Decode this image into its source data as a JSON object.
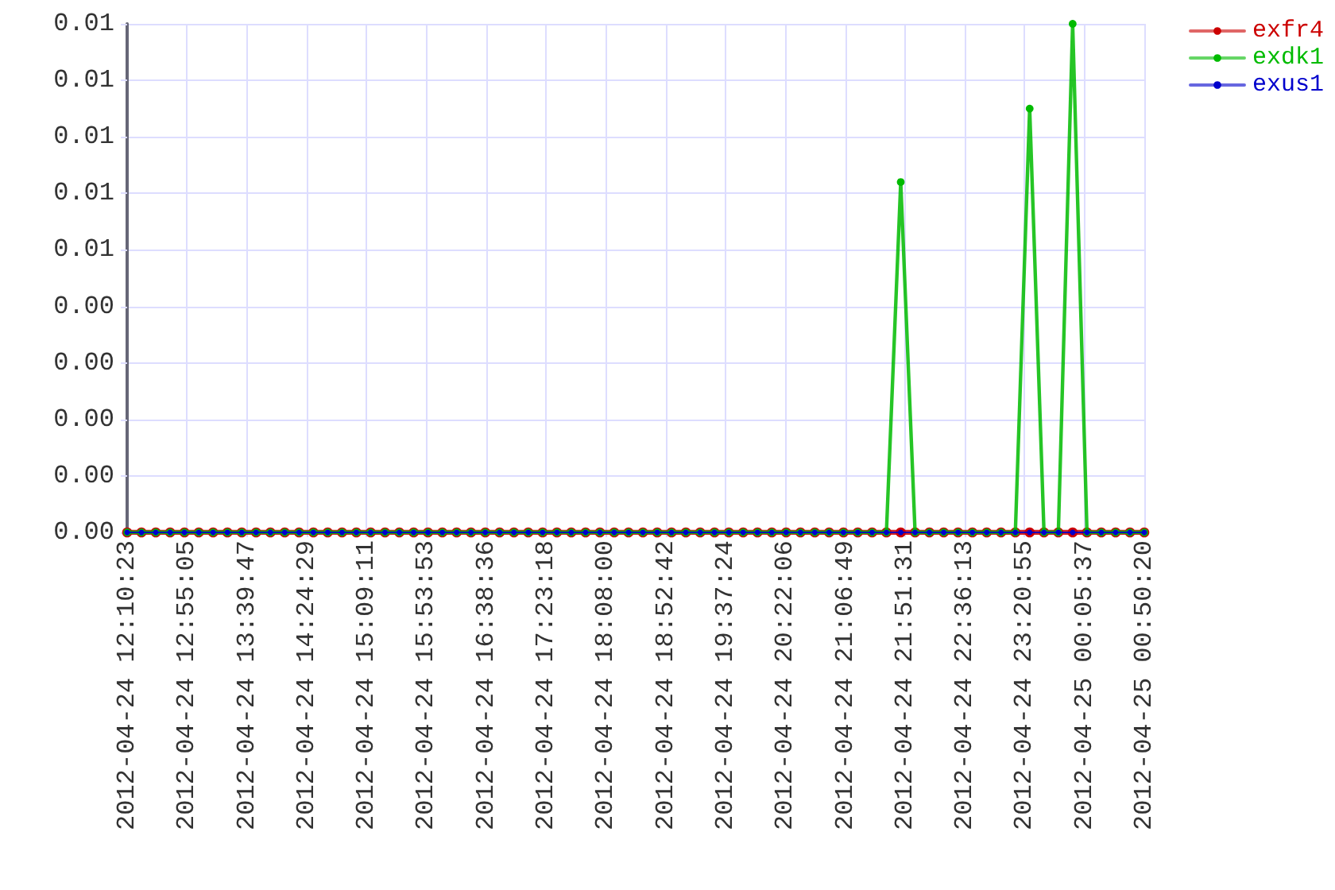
{
  "chart_data": {
    "type": "line",
    "x": [
      "2012-04-24T12:10:23",
      "2012-04-24T12:21:05",
      "2012-04-24T12:31:47",
      "2012-04-24T12:42:30",
      "2012-04-24T12:53:12",
      "2012-04-24T13:03:54",
      "2012-04-24T13:14:36",
      "2012-04-24T13:25:18",
      "2012-04-24T13:36:01",
      "2012-04-24T13:46:43",
      "2012-04-24T13:57:25",
      "2012-04-24T14:08:07",
      "2012-04-24T14:18:50",
      "2012-04-24T14:29:32",
      "2012-04-24T14:40:14",
      "2012-04-24T14:50:56",
      "2012-04-24T15:01:38",
      "2012-04-24T15:12:21",
      "2012-04-24T15:23:03",
      "2012-04-24T15:33:45",
      "2012-04-24T15:44:27",
      "2012-04-24T15:55:09",
      "2012-04-24T16:05:52",
      "2012-04-24T16:16:34",
      "2012-04-24T16:27:16",
      "2012-04-24T16:37:58",
      "2012-04-24T16:48:40",
      "2012-04-24T16:59:23",
      "2012-04-24T17:10:05",
      "2012-04-24T17:20:47",
      "2012-04-24T17:31:29",
      "2012-04-24T17:42:12",
      "2012-04-24T17:52:54",
      "2012-04-24T18:03:36",
      "2012-04-24T18:14:18",
      "2012-04-24T18:25:00",
      "2012-04-24T18:35:43",
      "2012-04-24T18:46:25",
      "2012-04-24T18:57:07",
      "2012-04-24T19:07:49",
      "2012-04-24T19:18:31",
      "2012-04-24T19:29:14",
      "2012-04-24T19:39:56",
      "2012-04-24T19:50:38",
      "2012-04-24T20:01:20",
      "2012-04-24T20:12:02",
      "2012-04-24T20:22:45",
      "2012-04-24T20:33:27",
      "2012-04-24T20:44:09",
      "2012-04-24T20:54:51",
      "2012-04-24T21:05:34",
      "2012-04-24T21:16:16",
      "2012-04-24T21:26:58",
      "2012-04-24T21:37:40",
      "2012-04-24T21:48:22",
      "2012-04-24T21:59:05",
      "2012-04-24T22:09:47",
      "2012-04-24T22:20:29",
      "2012-04-24T22:31:11",
      "2012-04-24T22:41:53",
      "2012-04-24T22:52:36",
      "2012-04-24T23:03:18",
      "2012-04-24T23:14:00",
      "2012-04-24T23:24:42",
      "2012-04-24T23:35:24",
      "2012-04-24T23:46:07",
      "2012-04-24T23:56:49",
      "2012-04-25T00:07:31",
      "2012-04-25T00:18:13",
      "2012-04-25T00:28:55",
      "2012-04-25T00:39:38",
      "2012-04-25T00:50:20"
    ],
    "xlim": [
      "2012-04-24T12:10:23",
      "2012-04-25T00:50:20"
    ],
    "xticks": [
      {
        "value": "2012-04-24T12:10:23",
        "label": "2012-04-24 12:10:23"
      },
      {
        "value": "2012-04-24T12:55:05",
        "label": "2012-04-24 12:55:05"
      },
      {
        "value": "2012-04-24T13:39:47",
        "label": "2012-04-24 13:39:47"
      },
      {
        "value": "2012-04-24T14:24:29",
        "label": "2012-04-24 14:24:29"
      },
      {
        "value": "2012-04-24T15:09:11",
        "label": "2012-04-24 15:09:11"
      },
      {
        "value": "2012-04-24T15:53:53",
        "label": "2012-04-24 15:53:53"
      },
      {
        "value": "2012-04-24T16:38:36",
        "label": "2012-04-24 16:38:36"
      },
      {
        "value": "2012-04-24T17:23:18",
        "label": "2012-04-24 17:23:18"
      },
      {
        "value": "2012-04-24T18:08:00",
        "label": "2012-04-24 18:08:00"
      },
      {
        "value": "2012-04-24T18:52:42",
        "label": "2012-04-24 18:52:42"
      },
      {
        "value": "2012-04-24T19:37:24",
        "label": "2012-04-24 19:37:24"
      },
      {
        "value": "2012-04-24T20:22:06",
        "label": "2012-04-24 20:22:06"
      },
      {
        "value": "2012-04-24T21:06:49",
        "label": "2012-04-24 21:06:49"
      },
      {
        "value": "2012-04-24T21:51:31",
        "label": "2012-04-24 21:51:31"
      },
      {
        "value": "2012-04-24T22:36:13",
        "label": "2012-04-24 22:36:13"
      },
      {
        "value": "2012-04-24T23:20:55",
        "label": "2012-04-24 23:20:55"
      },
      {
        "value": "2012-04-25T00:05:37",
        "label": "2012-04-25 00:05:37"
      },
      {
        "value": "2012-04-25T00:50:20",
        "label": "2012-04-25 00:50:20"
      }
    ],
    "ylim": [
      0,
      0.009
    ],
    "yticks": [
      {
        "value": 0,
        "label": "0.00"
      },
      {
        "value": 0.001,
        "label": "0.00"
      },
      {
        "value": 0.002,
        "label": "0.00"
      },
      {
        "value": 0.003,
        "label": "0.00"
      },
      {
        "value": 0.004,
        "label": "0.00"
      },
      {
        "value": 0.005,
        "label": "0.01"
      },
      {
        "value": 0.006,
        "label": "0.01"
      },
      {
        "value": 0.007,
        "label": "0.01"
      },
      {
        "value": 0.008,
        "label": "0.01"
      },
      {
        "value": 0.009,
        "label": "0.01"
      }
    ],
    "series": [
      {
        "name": "exfr4",
        "color": "#cc0000",
        "values": [
          0,
          0,
          0,
          0,
          0,
          0,
          0,
          0,
          0,
          0,
          0,
          0,
          0,
          0,
          0,
          0,
          0,
          0,
          0,
          0,
          0,
          0,
          0,
          0,
          0,
          0,
          0,
          0,
          0,
          0,
          0,
          0,
          0,
          0,
          0,
          0,
          0,
          0,
          0,
          0,
          0,
          0,
          0,
          0,
          0,
          0,
          0,
          0,
          0,
          0,
          0,
          0,
          0,
          0,
          0,
          0,
          0,
          0,
          0,
          0,
          0,
          0,
          0,
          0,
          0,
          0,
          0,
          0,
          0,
          0,
          0,
          0
        ]
      },
      {
        "name": "exdk1",
        "color": "#00bb00",
        "values": [
          0,
          0,
          0,
          0,
          0,
          0,
          0,
          0,
          0,
          0,
          0,
          0,
          0,
          0,
          0,
          0,
          0,
          0,
          0,
          0,
          0,
          0,
          0,
          0,
          0,
          0,
          0,
          0,
          0,
          0,
          0,
          0,
          0,
          0,
          0,
          0,
          0,
          0,
          0,
          0,
          0,
          0,
          0,
          0,
          0,
          0,
          0,
          0,
          0,
          0,
          0,
          0,
          0,
          0,
          0.0062,
          0,
          0,
          0,
          0,
          0,
          0,
          0,
          0,
          0.0075,
          0,
          0,
          0.009,
          0,
          0,
          0,
          0,
          0
        ]
      },
      {
        "name": "exus1",
        "color": "#0000cc",
        "values": [
          0,
          0,
          0,
          0,
          0,
          0,
          0,
          0,
          0,
          0,
          0,
          0,
          0,
          0,
          0,
          0,
          0,
          0,
          0,
          0,
          0,
          0,
          0,
          0,
          0,
          0,
          0,
          0,
          0,
          0,
          0,
          0,
          0,
          0,
          0,
          0,
          0,
          0,
          0,
          0,
          0,
          0,
          0,
          0,
          0,
          0,
          0,
          0,
          0,
          0,
          0,
          0,
          0,
          0,
          0,
          0,
          0,
          0,
          0,
          0,
          0,
          0,
          0,
          0,
          0,
          0,
          0,
          0,
          0,
          0,
          0,
          0
        ]
      }
    ],
    "grid": true,
    "legend": "top right",
    "marker": "circle",
    "line_style": "solid"
  }
}
